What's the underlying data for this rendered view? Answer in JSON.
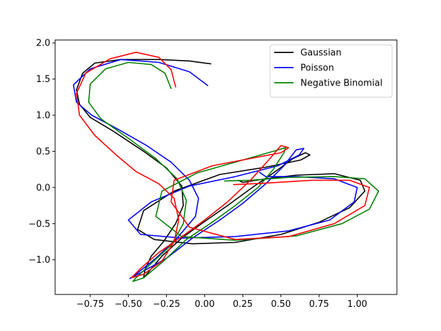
{
  "chart_data": {
    "type": "line",
    "title": "",
    "xlabel": "",
    "ylabel": "",
    "xlim": [
      -0.98,
      1.26
    ],
    "ylim": [
      -1.48,
      2.04
    ],
    "xticks": [
      -0.75,
      -0.5,
      -0.25,
      0.0,
      0.25,
      0.5,
      0.75,
      1.0
    ],
    "xtick_labels": [
      "−0.75",
      "−0.50",
      "−0.25",
      "0.00",
      "0.25",
      "0.50",
      "0.75",
      "1.00"
    ],
    "yticks": [
      -1.0,
      -0.5,
      0.0,
      0.5,
      1.0,
      1.5,
      2.0
    ],
    "ytick_labels": [
      "−1.0",
      "−0.5",
      "0.0",
      "0.5",
      "1.0",
      "1.5",
      "2.0"
    ],
    "grid": false,
    "legend_position": "top-right",
    "series": [
      {
        "name": "Gaussian",
        "color": "#000000",
        "points": [
          [
            0.04,
            1.71
          ],
          [
            -0.1,
            1.75
          ],
          [
            -0.3,
            1.77
          ],
          [
            -0.55,
            1.77
          ],
          [
            -0.72,
            1.72
          ],
          [
            -0.8,
            1.58
          ],
          [
            -0.84,
            1.35
          ],
          [
            -0.82,
            1.15
          ],
          [
            -0.75,
            0.97
          ],
          [
            -0.6,
            0.78
          ],
          [
            -0.4,
            0.5
          ],
          [
            -0.25,
            0.27
          ],
          [
            -0.15,
            0.02
          ],
          [
            -0.14,
            -0.25
          ],
          [
            -0.19,
            -0.5
          ],
          [
            -0.27,
            -0.75
          ],
          [
            -0.35,
            -0.95
          ],
          [
            -0.39,
            -1.13
          ],
          [
            -0.4,
            -1.25
          ],
          [
            -0.36,
            -1.15
          ],
          [
            -0.28,
            -0.95
          ],
          [
            -0.15,
            -0.7
          ],
          [
            0.0,
            -0.47
          ],
          [
            0.15,
            -0.25
          ],
          [
            0.3,
            -0.02
          ],
          [
            0.45,
            0.2
          ],
          [
            0.58,
            0.4
          ],
          [
            0.66,
            0.48
          ],
          [
            0.69,
            0.45
          ],
          [
            0.63,
            0.38
          ],
          [
            0.4,
            0.28
          ],
          [
            0.1,
            0.18
          ],
          [
            -0.2,
            -0.05
          ],
          [
            -0.4,
            -0.32
          ],
          [
            -0.44,
            -0.58
          ],
          [
            -0.33,
            -0.72
          ],
          [
            -0.08,
            -0.78
          ],
          [
            0.2,
            -0.76
          ],
          [
            0.5,
            -0.65
          ],
          [
            0.75,
            -0.48
          ],
          [
            0.95,
            -0.28
          ],
          [
            1.05,
            -0.05
          ],
          [
            1.02,
            0.1
          ],
          [
            0.85,
            0.19
          ],
          [
            0.6,
            0.17
          ],
          [
            0.4,
            0.12
          ],
          [
            0.25,
            0.07
          ],
          [
            0.22,
            0.1
          ]
        ]
      },
      {
        "name": "Poisson",
        "color": "#0000ff",
        "points": [
          [
            0.02,
            1.41
          ],
          [
            -0.1,
            1.6
          ],
          [
            -0.3,
            1.73
          ],
          [
            -0.55,
            1.77
          ],
          [
            -0.75,
            1.64
          ],
          [
            -0.86,
            1.42
          ],
          [
            -0.84,
            1.18
          ],
          [
            -0.74,
            1.0
          ],
          [
            -0.58,
            0.82
          ],
          [
            -0.38,
            0.58
          ],
          [
            -0.22,
            0.35
          ],
          [
            -0.1,
            0.1
          ],
          [
            -0.04,
            -0.15
          ],
          [
            -0.06,
            -0.4
          ],
          [
            -0.18,
            -0.7
          ],
          [
            -0.32,
            -0.98
          ],
          [
            -0.45,
            -1.2
          ],
          [
            -0.49,
            -1.26
          ],
          [
            -0.42,
            -1.18
          ],
          [
            -0.25,
            -0.98
          ],
          [
            -0.08,
            -0.7
          ],
          [
            0.1,
            -0.45
          ],
          [
            0.25,
            -0.22
          ],
          [
            0.4,
            0.05
          ],
          [
            0.52,
            0.3
          ],
          [
            0.6,
            0.52
          ],
          [
            0.65,
            0.54
          ],
          [
            0.62,
            0.45
          ],
          [
            0.48,
            0.3
          ],
          [
            0.2,
            0.15
          ],
          [
            -0.1,
            0.02
          ],
          [
            -0.35,
            -0.2
          ],
          [
            -0.5,
            -0.45
          ],
          [
            -0.42,
            -0.65
          ],
          [
            -0.15,
            -0.7
          ],
          [
            0.2,
            -0.68
          ],
          [
            0.55,
            -0.6
          ],
          [
            0.82,
            -0.45
          ],
          [
            0.98,
            -0.2
          ],
          [
            1.0,
            0.0
          ],
          [
            0.85,
            0.12
          ],
          [
            0.6,
            0.15
          ],
          [
            0.4,
            0.15
          ],
          [
            0.36,
            0.21
          ]
        ]
      },
      {
        "name": "Negative Binomial",
        "color": "#008000",
        "points": [
          [
            -0.22,
            1.37
          ],
          [
            -0.26,
            1.58
          ],
          [
            -0.35,
            1.7
          ],
          [
            -0.5,
            1.73
          ],
          [
            -0.65,
            1.64
          ],
          [
            -0.75,
            1.43
          ],
          [
            -0.76,
            1.18
          ],
          [
            -0.68,
            0.95
          ],
          [
            -0.5,
            0.68
          ],
          [
            -0.32,
            0.4
          ],
          [
            -0.18,
            0.12
          ],
          [
            -0.12,
            -0.18
          ],
          [
            -0.14,
            -0.5
          ],
          [
            -0.22,
            -0.8
          ],
          [
            -0.36,
            -1.07
          ],
          [
            -0.45,
            -1.25
          ],
          [
            -0.47,
            -1.3
          ],
          [
            -0.4,
            -1.25
          ],
          [
            -0.27,
            -1.02
          ],
          [
            -0.12,
            -0.72
          ],
          [
            0.05,
            -0.48
          ],
          [
            0.2,
            -0.25
          ],
          [
            0.35,
            0.0
          ],
          [
            0.45,
            0.25
          ],
          [
            0.52,
            0.48
          ],
          [
            0.53,
            0.55
          ],
          [
            0.45,
            0.5
          ],
          [
            0.25,
            0.38
          ],
          [
            -0.05,
            0.2
          ],
          [
            -0.28,
            -0.05
          ],
          [
            -0.32,
            -0.4
          ],
          [
            -0.15,
            -0.68
          ],
          [
            0.2,
            -0.73
          ],
          [
            0.6,
            -0.67
          ],
          [
            0.9,
            -0.5
          ],
          [
            1.08,
            -0.3
          ],
          [
            1.14,
            -0.05
          ],
          [
            1.05,
            0.12
          ],
          [
            0.85,
            0.15
          ],
          [
            0.55,
            0.14
          ],
          [
            0.3,
            0.1
          ],
          [
            0.13,
            0.09
          ]
        ]
      },
      {
        "name": "",
        "color": "#ff0000",
        "points": [
          [
            -0.19,
            1.39
          ],
          [
            -0.22,
            1.63
          ],
          [
            -0.3,
            1.8
          ],
          [
            -0.45,
            1.87
          ],
          [
            -0.62,
            1.78
          ],
          [
            -0.78,
            1.58
          ],
          [
            -0.84,
            1.3
          ],
          [
            -0.82,
            1.0
          ],
          [
            -0.72,
            0.72
          ],
          [
            -0.58,
            0.45
          ],
          [
            -0.45,
            0.22
          ],
          [
            -0.3,
            0.05
          ],
          [
            -0.2,
            -0.15
          ],
          [
            -0.17,
            -0.45
          ],
          [
            -0.2,
            -0.75
          ],
          [
            -0.28,
            -1.02
          ],
          [
            -0.4,
            -1.2
          ],
          [
            -0.48,
            -1.25
          ],
          [
            -0.42,
            -1.12
          ],
          [
            -0.3,
            -0.9
          ],
          [
            -0.15,
            -0.68
          ],
          [
            0.0,
            -0.45
          ],
          [
            0.15,
            -0.2
          ],
          [
            0.3,
            0.1
          ],
          [
            0.42,
            0.38
          ],
          [
            0.5,
            0.58
          ],
          [
            0.55,
            0.55
          ],
          [
            0.5,
            0.48
          ],
          [
            0.3,
            0.4
          ],
          [
            0.05,
            0.3
          ],
          [
            -0.2,
            0.1
          ],
          [
            -0.22,
            -0.2
          ],
          [
            -0.1,
            -0.55
          ],
          [
            0.2,
            -0.72
          ],
          [
            0.55,
            -0.68
          ],
          [
            0.85,
            -0.5
          ],
          [
            1.05,
            -0.25
          ],
          [
            1.08,
            0.0
          ],
          [
            0.95,
            0.1
          ],
          [
            0.7,
            0.1
          ],
          [
            0.4,
            0.06
          ],
          [
            0.19,
            0.04
          ]
        ]
      }
    ]
  }
}
